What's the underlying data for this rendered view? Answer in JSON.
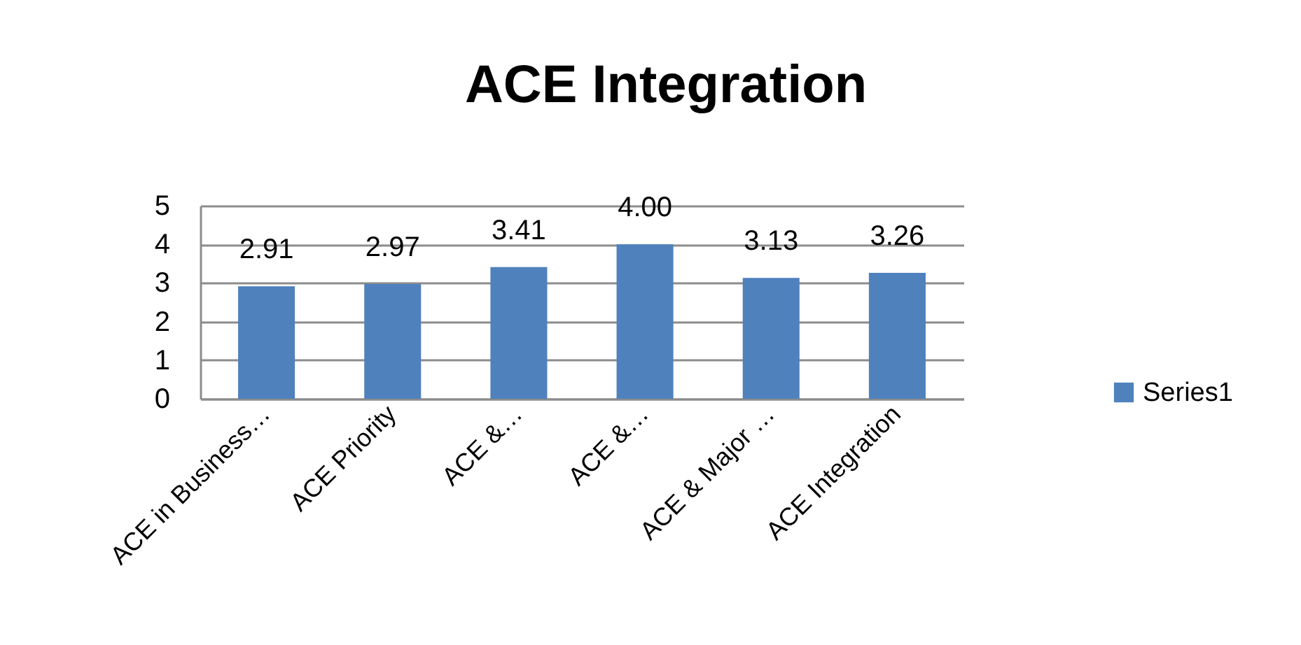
{
  "chart_data": {
    "type": "bar",
    "title": "ACE Integration",
    "categories": [
      "ACE in Business…",
      "ACE Priority",
      "ACE &…",
      "ACE &…",
      "ACE & Major …",
      "ACE Integration"
    ],
    "series": [
      {
        "name": "Series1",
        "color": "#4f81bd",
        "values": [
          2.91,
          2.97,
          3.41,
          4.0,
          3.13,
          3.26
        ],
        "value_labels": [
          "2.91",
          "2.97",
          "3.41",
          "4.00",
          "3.13",
          "3.26"
        ]
      }
    ],
    "ylim": [
      0,
      5
    ],
    "yticks": [
      0,
      1,
      2,
      3,
      4,
      5
    ],
    "grid": "y",
    "legend": "right"
  }
}
